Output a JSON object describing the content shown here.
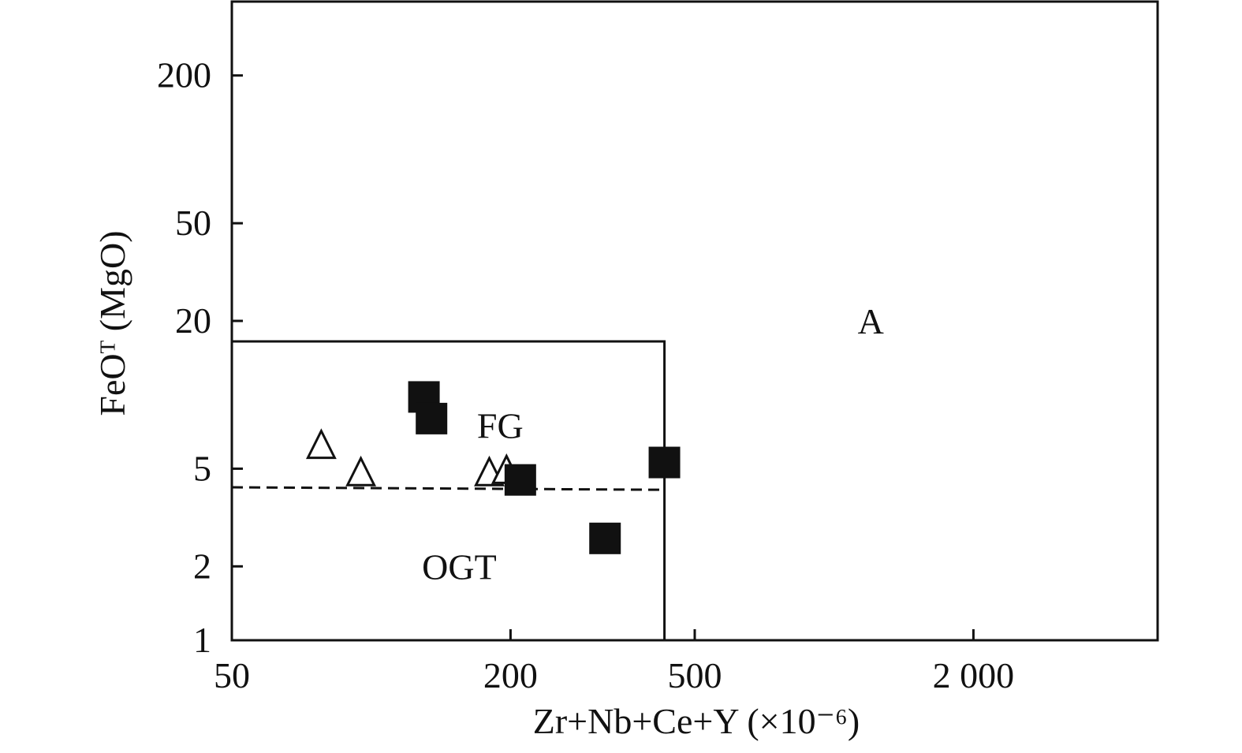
{
  "chart_data": {
    "type": "scatter",
    "title": "",
    "xlabel": "Zr+Nb+Ce+Y (×10⁻⁶)",
    "ylabel": "FeOᵀ (MgO)",
    "xscale": "log",
    "yscale": "log",
    "xlim": [
      50,
      5000
    ],
    "ylim": [
      1,
      400
    ],
    "xticks": [
      {
        "value": 50,
        "label": "50"
      },
      {
        "value": 200,
        "label": "200"
      },
      {
        "value": 500,
        "label": "500"
      },
      {
        "value": 2000,
        "label": "2 000"
      }
    ],
    "yticks": [
      {
        "value": 1,
        "label": "1"
      },
      {
        "value": 2,
        "label": "2"
      },
      {
        "value": 5,
        "label": "5"
      },
      {
        "value": 20,
        "label": "20"
      },
      {
        "value": 50,
        "label": "50"
      },
      {
        "value": 200,
        "label": "200"
      }
    ],
    "grid": false,
    "legend": "none",
    "regions": [
      {
        "name": "A",
        "label": "A",
        "x": 1200,
        "y": 20
      },
      {
        "name": "FG",
        "label": "FG",
        "x": 190,
        "y": 7.5
      },
      {
        "name": "OGT",
        "label": "OGT",
        "x": 155,
        "y": 2
      }
    ],
    "boundaries": [
      {
        "name": "fg-ogt-box",
        "style": "solid",
        "points": [
          [
            50,
            16.5
          ],
          [
            430,
            16.5
          ],
          [
            430,
            1
          ]
        ]
      },
      {
        "name": "fg-ogt-divider",
        "style": "dashed",
        "points": [
          [
            50,
            4.2
          ],
          [
            430,
            4.1
          ]
        ]
      }
    ],
    "series": [
      {
        "marker": "open-triangle",
        "color": "#111111",
        "points": [
          {
            "x": 78,
            "y": 6.2
          },
          {
            "x": 95,
            "y": 4.8
          },
          {
            "x": 180,
            "y": 4.8
          },
          {
            "x": 196,
            "y": 4.9
          }
        ]
      },
      {
        "marker": "filled-square",
        "color": "#111111",
        "points": [
          {
            "x": 130,
            "y": 9.8
          },
          {
            "x": 135,
            "y": 8.0
          },
          {
            "x": 210,
            "y": 4.5
          },
          {
            "x": 320,
            "y": 2.6
          },
          {
            "x": 430,
            "y": 5.3
          }
        ]
      }
    ]
  }
}
